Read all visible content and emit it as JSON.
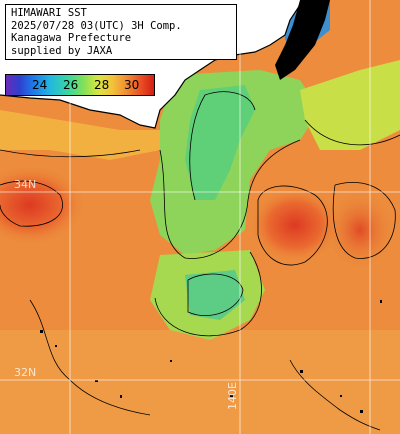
{
  "title": {
    "line1": "HIMAWARI SST",
    "line2": "2025/07/28 03(UTC) 3H Comp.",
    "line3": "Kanagawa Prefecture",
    "line4": "supplied by JAXA"
  },
  "legend": {
    "labels": [
      "24",
      "26",
      "28",
      "30"
    ]
  },
  "grid": {
    "lat_labels": [
      "34N",
      "32N"
    ],
    "lon_labels": [
      "140E"
    ]
  },
  "colors": {
    "land": "#ffffff",
    "no_data": "#000000",
    "warm_sea": "#ee8a3a",
    "hot_core": "#e2402a",
    "cool_sea": "#7fd15e",
    "cold_sea": "#2f88c8",
    "grid_line": "#ffffff",
    "contour": "#000000"
  }
}
